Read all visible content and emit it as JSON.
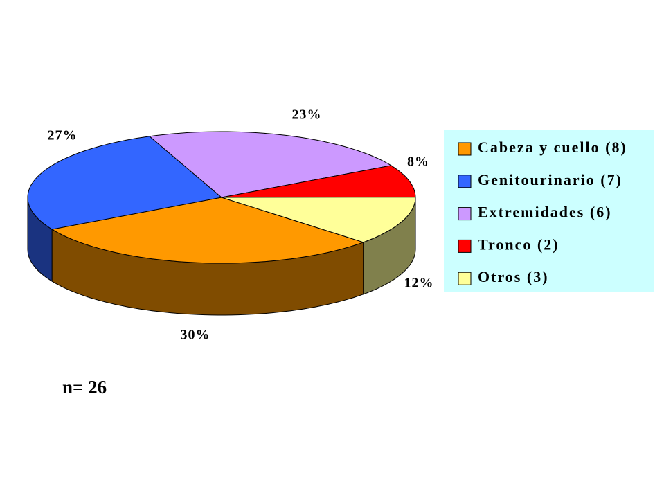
{
  "chart_data": {
    "type": "pie",
    "style": "3d",
    "categories": [
      "Cabeza y cuello (8)",
      "Genitourinario (7)",
      "Extremidades (6)",
      "Tronco (2)",
      "Otros (3)"
    ],
    "values": [
      30,
      27,
      23,
      8,
      12
    ],
    "value_labels": [
      "30%",
      "27%",
      "23%",
      "8%",
      "12%"
    ],
    "colors": [
      "#ff9900",
      "#3366ff",
      "#cc99ff",
      "#ff0000",
      "#ffff99"
    ],
    "side_colors": [
      "#804c00",
      "#1a3380",
      "#66507f",
      "#800000",
      "#80804c"
    ],
    "legend": "right",
    "annotation": "n= 26"
  }
}
